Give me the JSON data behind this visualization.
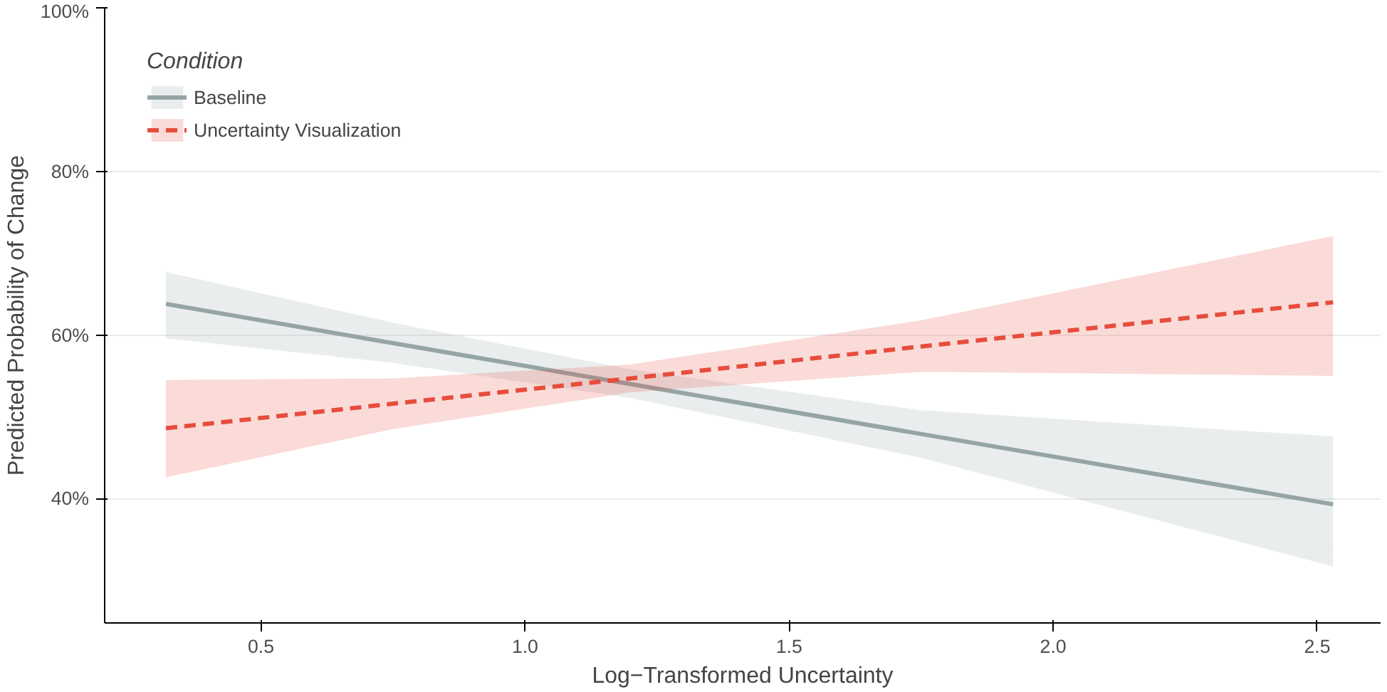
{
  "chart_data": {
    "type": "line",
    "xlabel": "Log−Transformed Uncertainty",
    "ylabel": "Predicted Probability of Change",
    "legend_title": "Condition",
    "xlim": [
      0.204,
      2.62
    ],
    "ylim": [
      24.8,
      100
    ],
    "xticks": [
      0.5,
      {
        "value": 1,
        "label": "1.0"
      },
      1.5,
      {
        "value": 2,
        "label": "2.0"
      },
      2.5
    ],
    "yticks": [
      {
        "value": 40,
        "label": "40%"
      },
      {
        "value": 60,
        "label": "60%"
      },
      {
        "value": 80,
        "label": "80%"
      },
      {
        "value": 100,
        "label": "100%"
      }
    ],
    "grid": "y",
    "legend": "top left",
    "marker": "none",
    "series": [
      {
        "name": "Baseline",
        "color": "#95a5a6",
        "line_style": "solid",
        "x": [
          0.32,
          0.75,
          1.2,
          1.75,
          2.53
        ],
        "values": [
          63.8,
          59.0,
          54.0,
          47.9,
          39.3
        ],
        "lower": [
          59.6,
          56.6,
          52.3,
          45.0,
          31.7
        ],
        "upper": [
          67.7,
          61.5,
          55.8,
          50.8,
          47.6
        ]
      },
      {
        "name": "Uncertainty Visualization",
        "color": "#e74c3c",
        "line_style": "dashed",
        "x": [
          0.32,
          0.75,
          1.2,
          1.75,
          2.53
        ],
        "values": [
          48.6,
          51.6,
          54.7,
          58.6,
          64.0
        ],
        "lower": [
          42.6,
          48.5,
          53.0,
          55.5,
          55.0
        ],
        "upper": [
          54.5,
          54.7,
          56.4,
          61.8,
          72.1
        ]
      }
    ]
  }
}
